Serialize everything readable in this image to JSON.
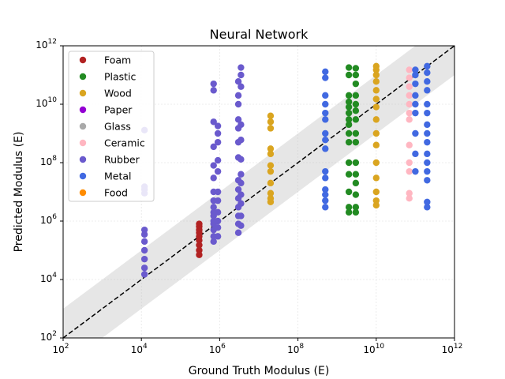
{
  "chart_data": {
    "type": "scatter",
    "title": "Neural Network",
    "xlabel": "Ground Truth Modulus (E)",
    "ylabel": "Predicted Modulus (E)",
    "xscale": "log",
    "yscale": "log",
    "xlim": [
      100,
      1000000000000
    ],
    "ylim": [
      100,
      1000000000000
    ],
    "x_ticks": [
      {
        "base": "10",
        "exp": "2"
      },
      {
        "base": "10",
        "exp": "4"
      },
      {
        "base": "10",
        "exp": "6"
      },
      {
        "base": "10",
        "exp": "8"
      },
      {
        "base": "10",
        "exp": "10"
      },
      {
        "base": "10",
        "exp": "12"
      }
    ],
    "y_ticks": [
      {
        "base": "10",
        "exp": "2"
      },
      {
        "base": "10",
        "exp": "4"
      },
      {
        "base": "10",
        "exp": "6"
      },
      {
        "base": "10",
        "exp": "8"
      },
      {
        "base": "10",
        "exp": "10"
      },
      {
        "base": "10",
        "exp": "12"
      }
    ],
    "grid": true,
    "legend_position": "top-left",
    "reference_line": "y = x (dashed black)",
    "tolerance_band": "gray shaded band around y = x (about ±1 decade)",
    "series": [
      {
        "name": "Foam",
        "color": "#b22222",
        "groups": [
          {
            "x": 300000,
            "y": [
              70000,
              100000,
              150000,
              220000,
              300000,
              400000,
              500000,
              650000,
              800000
            ]
          }
        ]
      },
      {
        "name": "Plastic",
        "color": "#228b22",
        "groups": [
          {
            "x": 2000000000,
            "y": [
              2000000,
              3000000,
              10000000,
              40000000,
              100000000,
              500000000,
              1000000000,
              2000000000,
              3000000000,
              5000000000,
              8000000000,
              12000000000,
              20000000000,
              100000000000,
              180000000000
            ]
          },
          {
            "x": 3000000000,
            "y": [
              2000000,
              3000000,
              8000000,
              20000000,
              40000000,
              100000000,
              500000000,
              1000000000,
              3000000000,
              6000000000,
              10000000000,
              20000000000,
              50000000000,
              100000000000,
              170000000000
            ]
          }
        ]
      },
      {
        "name": "Wood",
        "color": "#daa520",
        "groups": [
          {
            "x": 20000000,
            "y": [
              4500000,
              6000000,
              9000000,
              20000000,
              50000000,
              80000000,
              200000000,
              300000000,
              1500000000,
              2500000000,
              4000000000
            ]
          },
          {
            "x": 10000000000,
            "y": [
              3500000,
              5000000,
              10000000,
              30000000,
              100000000,
              400000000,
              1000000000,
              3000000000,
              8000000000,
              15000000000,
              30000000000,
              60000000000,
              100000000000,
              150000000000,
              200000000000
            ]
          }
        ]
      },
      {
        "name": "Paper",
        "color": "#9400d3",
        "groups": []
      },
      {
        "name": "Glass",
        "color": "#a9a9a9",
        "groups": []
      },
      {
        "name": "Ceramic",
        "color": "#ffb6c1",
        "groups": [
          {
            "x": 70000000000,
            "y": [
              6000000,
              9000000,
              50000000,
              100000000,
              400000000,
              3000000000,
              5000000000,
              10000000000,
              20000000000,
              40000000000,
              80000000000,
              150000000000
            ]
          }
        ]
      },
      {
        "name": "Rubber",
        "color": "#6a5acd",
        "groups": [
          {
            "x": 12000,
            "y": [
              15000,
              25000,
              50000,
              100000,
              200000,
              350000,
              500000,
              9000000,
              12000000,
              15000000,
              1300000000
            ]
          },
          {
            "x": 700000,
            "y": [
              200000,
              300000,
              500000,
              800000,
              1000000,
              1500000,
              2000000,
              3000000,
              5000000,
              10000000,
              30000000,
              80000000,
              350000000,
              2500000000,
              30000000000,
              50000000000
            ]
          },
          {
            "x": 900000,
            "y": [
              300000,
              600000,
              1000000,
              2000000,
              5000000,
              10000000,
              50000000,
              120000000,
              500000000,
              1000000000,
              1800000000
            ]
          },
          {
            "x": 3000000,
            "y": [
              400000,
              800000,
              1500000,
              3000000,
              6000000,
              12000000,
              25000000,
              150000000,
              500000000,
              1500000000,
              3000000000,
              10000000000,
              20000000000,
              60000000000
            ]
          },
          {
            "x": 3500000,
            "y": [
              700000,
              1500000,
              4000000,
              8000000,
              20000000,
              40000000,
              130000000,
              600000000,
              2000000000,
              40000000000,
              100000000000,
              180000000000
            ]
          }
        ]
      },
      {
        "name": "Metal",
        "color": "#4169e1",
        "groups": [
          {
            "x": 500000000,
            "y": [
              3000000,
              5000000,
              8000000,
              12000000,
              30000000,
              50000000,
              300000000,
              600000000,
              1000000000,
              3000000000,
              5000000000,
              10000000000,
              20000000000,
              80000000000,
              130000000000
            ]
          },
          {
            "x": 100000000000,
            "y": [
              50000000,
              200000000,
              1000000000,
              5000000000,
              10000000000,
              20000000000,
              50000000000,
              100000000000,
              150000000000
            ]
          },
          {
            "x": 200000000000,
            "y": [
              3000000,
              4500000,
              25000000,
              50000000,
              100000000,
              200000000,
              500000000,
              1000000000,
              2000000000,
              5000000000,
              10000000000,
              30000000000,
              60000000000,
              120000000000,
              200000000000
            ]
          }
        ]
      },
      {
        "name": "Food",
        "color": "#ff8c00",
        "groups": []
      }
    ]
  }
}
